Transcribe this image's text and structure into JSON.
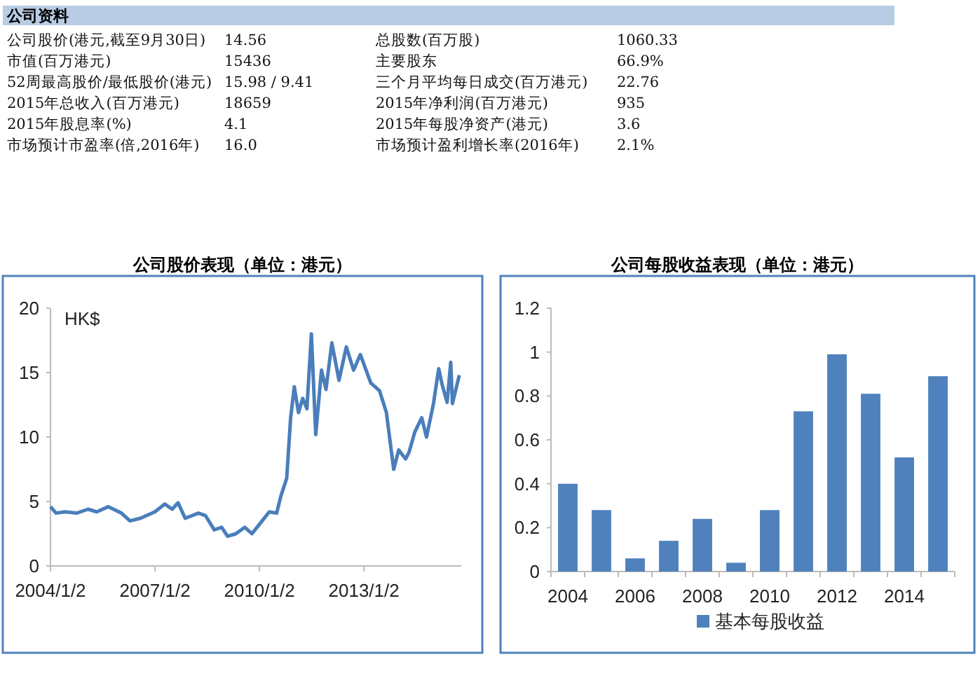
{
  "chart_data": [
    {
      "type": "other",
      "title": "公司资料",
      "annotations": [
        "公司股价(港元,截至9月30日)",
        "14.56",
        "总股数(百万股)",
        "1060.33",
        "市值(百万港元)",
        "15436",
        "主要股东",
        "66.9%",
        "52周最高股价/最低股价(港元)",
        "15.98 / 9.41",
        "三个月平均每日成交(百万港元)",
        "22.76",
        "2015年总收入(百万港元)",
        "18659",
        "2015年净利润(百万港元)",
        "935",
        "2015年股息率(%)",
        "4.1",
        "2015年每股净资产(港元)",
        "3.6",
        "市场预计市盈率(倍,2016年)",
        "16.0",
        "市场预计盈利增长率(2016年)",
        "2.1%"
      ]
    },
    {
      "type": "line",
      "title": "公司股价表现（单位：港元）",
      "ylabel": "HK$",
      "color": "#4a7ebb",
      "x": [
        "2004-01-02",
        "2004-03-01",
        "2004-06-01",
        "2004-10-01",
        "2005-02-01",
        "2005-05-01",
        "2005-09-01",
        "2006-01-15",
        "2006-04-15",
        "2006-08-01",
        "2007-01-02",
        "2007-04-15",
        "2007-07-01",
        "2007-09-01",
        "2007-11-15",
        "2008-04-01",
        "2008-06-15",
        "2008-09-15",
        "2008-12-01",
        "2009-02-01",
        "2009-05-01",
        "2009-08-01",
        "2009-10-15",
        "2010-01-20",
        "2010-04-15",
        "2010-07-01",
        "2010-08-15",
        "2010-10-15",
        "2010-11-25",
        "2011-01-02",
        "2011-02-15",
        "2011-04-01",
        "2011-05-15",
        "2011-07-01",
        "2011-08-15",
        "2011-10-15",
        "2011-12-01",
        "2012-02-01",
        "2012-04-15",
        "2012-07-01",
        "2012-09-15",
        "2012-11-25",
        "2013-03-15",
        "2013-06-15",
        "2013-08-25",
        "2013-11-10",
        "2014-01-02",
        "2014-03-15",
        "2014-04-20",
        "2014-06-20",
        "2014-09-01",
        "2014-10-20",
        "2015-01-02",
        "2015-02-25",
        "2015-04-01",
        "2015-05-25",
        "2015-07-01",
        "2015-07-20",
        "2015-09-30"
      ],
      "values": [
        4.6,
        4.1,
        4.2,
        4.1,
        4.4,
        4.2,
        4.6,
        4.1,
        3.5,
        3.7,
        4.2,
        4.8,
        4.4,
        4.9,
        3.7,
        4.1,
        3.9,
        2.8,
        3.0,
        2.3,
        2.5,
        3.0,
        2.5,
        3.4,
        4.2,
        4.1,
        5.4,
        6.8,
        11.5,
        13.9,
        11.9,
        13.0,
        12.2,
        18.0,
        10.2,
        15.2,
        13.7,
        17.3,
        14.4,
        17.0,
        15.2,
        16.4,
        14.2,
        13.6,
        11.9,
        7.5,
        9.0,
        8.3,
        8.8,
        10.4,
        11.5,
        10.0,
        12.6,
        15.3,
        14.1,
        12.7,
        15.8,
        12.6,
        14.8
      ],
      "xlim": [
        "2004-01-02",
        "2015-10-20"
      ],
      "xticks": [
        {
          "value": "2004-01-02",
          "label": "2004/1/2"
        },
        {
          "value": "2007-01-02",
          "label": "2007/1/2"
        },
        {
          "value": "2010-01-02",
          "label": "2010/1/2"
        },
        {
          "value": "2013-01-02",
          "label": "2013/1/2"
        }
      ],
      "ylim": [
        0,
        20
      ],
      "yticks": [
        0,
        5,
        10,
        15,
        20
      ]
    },
    {
      "type": "bar",
      "title": "公司每股收益表现（单位：港元）",
      "categories": [
        "2004",
        null,
        "2006",
        null,
        "2008",
        null,
        "2010",
        null,
        "2012",
        null,
        "2014",
        null
      ],
      "series": [
        {
          "name": "基本每股收益",
          "color": "#4f81bd",
          "values": [
            0.4,
            0.28,
            0.06,
            0.14,
            0.24,
            0.04,
            0.28,
            0.73,
            0.99,
            0.81,
            0.52,
            0.89
          ]
        }
      ],
      "ylim": [
        0,
        1.2
      ],
      "yticks": [
        0,
        0.2,
        0.4,
        0.6,
        0.8,
        1,
        1.2
      ],
      "legend": "bottom"
    }
  ]
}
